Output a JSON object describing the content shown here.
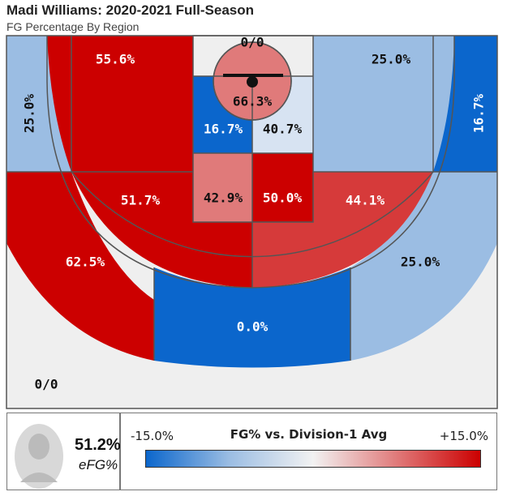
{
  "title": "Madi Williams: 2020-2021 Full-Season",
  "subtitle": "FG Percentage By Region",
  "chart_data": {
    "type": "heatmap",
    "chart_kind": "shot-chart",
    "zones": [
      {
        "id": "left-corner-three",
        "label": "25.0%",
        "value": 25.0,
        "color": "#9bbde3"
      },
      {
        "id": "left-wing-three",
        "label": "55.6%",
        "value": 55.6,
        "color": "#cc0000"
      },
      {
        "id": "top-restricted-top",
        "label": "0/0",
        "value": null,
        "color": "#efefef"
      },
      {
        "id": "right-wing-three",
        "label": "25.0%",
        "value": 25.0,
        "color": "#9bbde3"
      },
      {
        "id": "right-corner-three",
        "label": "16.7%",
        "value": 16.7,
        "color": "#0b66cc"
      },
      {
        "id": "restricted-area",
        "label": "66.3%",
        "value": 66.3,
        "color": "#e07a7a"
      },
      {
        "id": "paint-left-upper",
        "label": "16.7%",
        "value": 16.7,
        "color": "#0b66cc"
      },
      {
        "id": "paint-right-upper",
        "label": "40.7%",
        "value": 40.7,
        "color": "#d7e3f2"
      },
      {
        "id": "paint-left-lower",
        "label": "42.9%",
        "value": 42.9,
        "color": "#e07a7a"
      },
      {
        "id": "paint-right-lower",
        "label": "50.0%",
        "value": 50.0,
        "color": "#cc0000"
      },
      {
        "id": "left-midrange",
        "label": "51.7%",
        "value": 51.7,
        "color": "#cc0000"
      },
      {
        "id": "right-midrange",
        "label": "44.1%",
        "value": 44.1,
        "color": "#d63a3a"
      },
      {
        "id": "left-three-lower",
        "label": "62.5%",
        "value": 62.5,
        "color": "#cc0000"
      },
      {
        "id": "center-three",
        "label": "0.0%",
        "value": 0.0,
        "color": "#0b66cc"
      },
      {
        "id": "right-three-lower",
        "label": "25.0%",
        "value": 25.0,
        "color": "#9bbde3"
      },
      {
        "id": "backcourt",
        "label": "0/0",
        "value": null,
        "color": "#efefef"
      }
    ],
    "legend": {
      "title": "FG% vs. Division-1 Avg",
      "min_label": "-15.0%",
      "max_label": "+15.0%",
      "colors": [
        "#0b66cc",
        "#9bbde3",
        "#f2f2f2",
        "#e07a7a",
        "#cc0000"
      ]
    }
  },
  "summary": {
    "value": "51.2%",
    "label": "eFG%"
  }
}
